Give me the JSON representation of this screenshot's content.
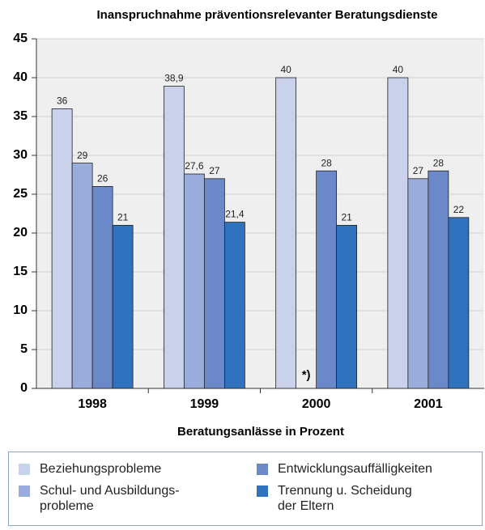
{
  "chart_data": {
    "type": "bar",
    "title": "Inanspruchnahme präventionsrelevanter Beratungsdienste",
    "x_label": "Beratungsanlässe in Prozent",
    "annotation": "*)",
    "categories": [
      "1998",
      "1999",
      "2000",
      "2001"
    ],
    "series": [
      {
        "name": "Beziehungsprobleme",
        "color": "#c9d1eb",
        "values": [
          36,
          38.9,
          40,
          40
        ],
        "value_labels": [
          "36",
          "38,9",
          "40",
          "40"
        ]
      },
      {
        "name": "Schul- und Ausbildungs-\nprobleme",
        "color": "#99acdb",
        "values": [
          29,
          27.6,
          null,
          27
        ],
        "value_labels": [
          "29",
          "27,6",
          null,
          "27"
        ]
      },
      {
        "name": "Entwicklungsauffälligkeiten",
        "color": "#6b88c9",
        "values": [
          26,
          27,
          28,
          28
        ]
      },
      {
        "name": "Trennung u. Scheidung\nder Eltern",
        "color": "#2f72bd",
        "values": [
          21,
          21.4,
          21,
          22
        ],
        "value_labels": [
          "21",
          "21,4",
          "21",
          "22"
        ]
      }
    ],
    "ylim": [
      0,
      45
    ],
    "yticks": [
      0,
      5,
      10,
      15,
      20,
      25,
      30,
      35,
      40,
      45
    ],
    "grid": true
  }
}
